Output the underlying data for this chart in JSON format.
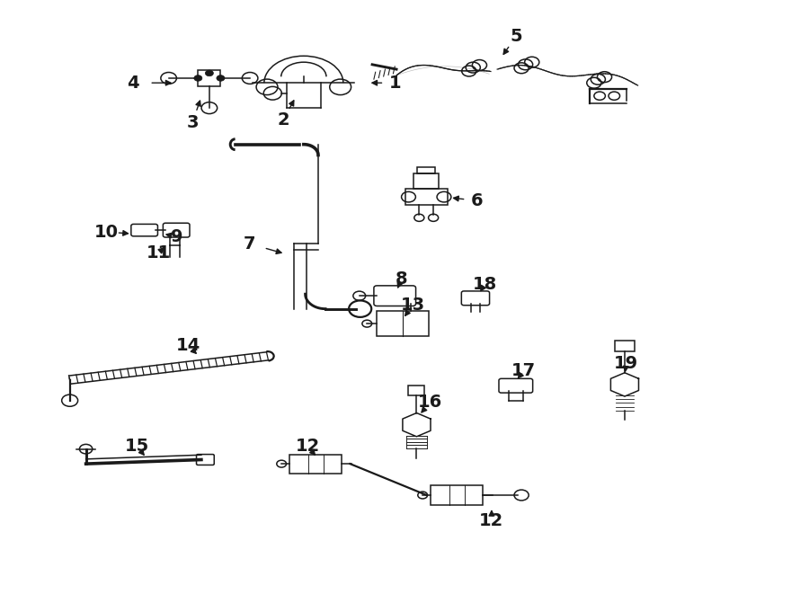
{
  "bg_color": "#ffffff",
  "line_color": "#1a1a1a",
  "fig_width": 9.0,
  "fig_height": 6.61,
  "dpi": 100,
  "label_fs": 14,
  "label_positions": {
    "1": [
      0.488,
      0.862,
      0.455,
      0.862
    ],
    "2": [
      0.35,
      0.8,
      0.365,
      0.838
    ],
    "3": [
      0.237,
      0.795,
      0.248,
      0.838
    ],
    "4": [
      0.163,
      0.862,
      0.215,
      0.862
    ],
    "5": [
      0.638,
      0.94,
      0.62,
      0.905
    ],
    "6": [
      0.59,
      0.663,
      0.556,
      0.668
    ],
    "7": [
      0.308,
      0.59,
      0.352,
      0.573
    ],
    "8": [
      0.496,
      0.53,
      0.49,
      0.51
    ],
    "9": [
      0.218,
      0.602,
      0.2,
      0.607
    ],
    "10": [
      0.13,
      0.61,
      0.162,
      0.607
    ],
    "11": [
      0.195,
      0.575,
      0.205,
      0.587
    ],
    "12a": [
      0.38,
      0.248,
      0.392,
      0.228
    ],
    "12b": [
      0.608,
      0.122,
      0.608,
      0.145
    ],
    "13": [
      0.51,
      0.486,
      0.498,
      0.463
    ],
    "14": [
      0.232,
      0.418,
      0.245,
      0.4
    ],
    "15": [
      0.168,
      0.248,
      0.18,
      0.228
    ],
    "16": [
      0.532,
      0.322,
      0.518,
      0.3
    ],
    "17": [
      0.648,
      0.375,
      0.638,
      0.358
    ],
    "18": [
      0.6,
      0.522,
      0.592,
      0.505
    ],
    "19": [
      0.775,
      0.388,
      0.773,
      0.368
    ]
  }
}
